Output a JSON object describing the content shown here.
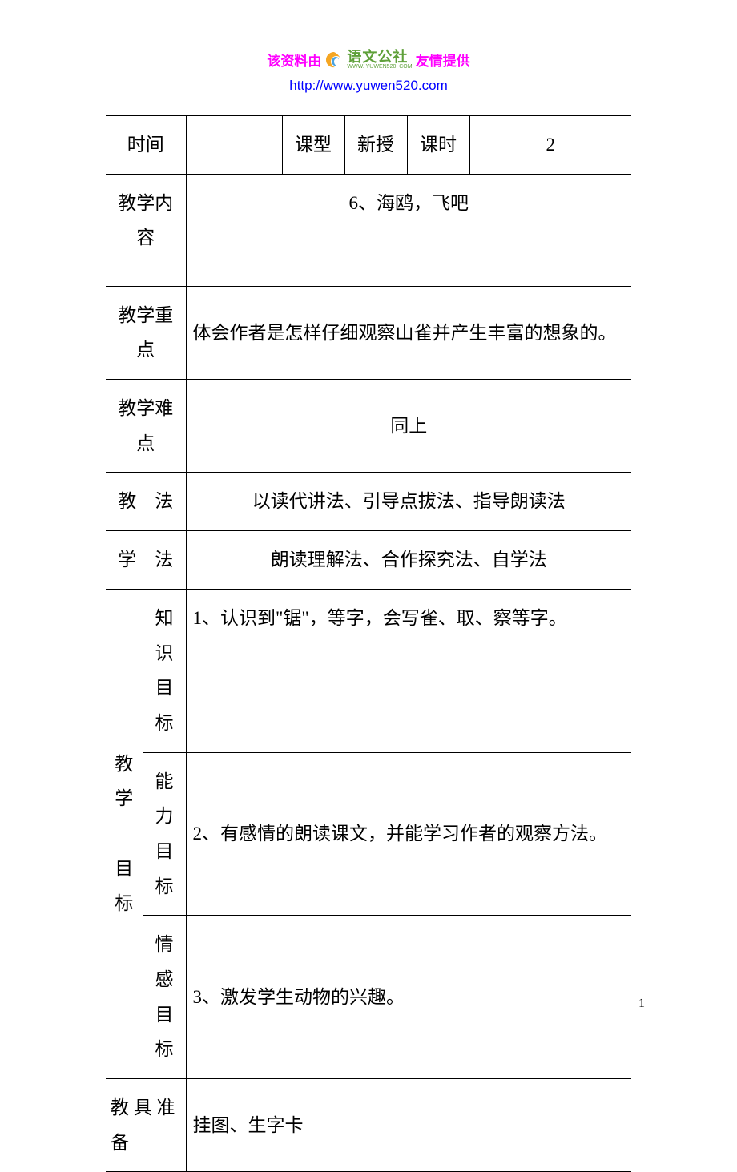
{
  "header": {
    "prefix": "该资料由",
    "logo_cn": "语文公社",
    "logo_url_small": "WWW. YUWEN520. COM",
    "suffix": "友情提供",
    "url": "http://www.yuwen520.com",
    "prefix_color": "#ff00ff",
    "suffix_color": "#ff00ff",
    "url_color": "#0000ff",
    "logo_color": "#5fa03a"
  },
  "table": {
    "border_color": "#000000",
    "background_color": "#ffffff",
    "font_size": 23,
    "row1": {
      "label": "时间",
      "value1": "",
      "label2": "课型",
      "value2": "新授",
      "label3": "课时",
      "value3": "2"
    },
    "row2": {
      "label_line": "教学内\n容",
      "content": "6、海鸥，飞吧"
    },
    "row3": {
      "label_line": "教学重\n点",
      "content": "体会作者是怎样仔细观察山雀并产生丰富的想象的。"
    },
    "row4": {
      "label_line": "教学难\n点",
      "content": "同上"
    },
    "row5": {
      "label": "教　法",
      "content": "以读代讲法、引导点拔法、指导朗读法"
    },
    "row6": {
      "label": "学　法",
      "content": "朗读理解法、合作探究法、自学法"
    },
    "objectives": {
      "main_label": "教\n学\n\n目\n标",
      "sub1_label": "知识\n目标",
      "sub1_content": "1、认识到\"锯\"，等字，会写雀、取、察等字。",
      "sub2_label": "能力\n目标",
      "sub2_content": "2、有感情的朗读课文，并能学习作者的观察方法。",
      "sub3_label": "情感\n目标",
      "sub3_content": "3、激发学生动物的兴趣。"
    },
    "row_tools": {
      "label": "教 具 准\n备",
      "content": "挂图、生字卡"
    }
  },
  "page_number": "1"
}
